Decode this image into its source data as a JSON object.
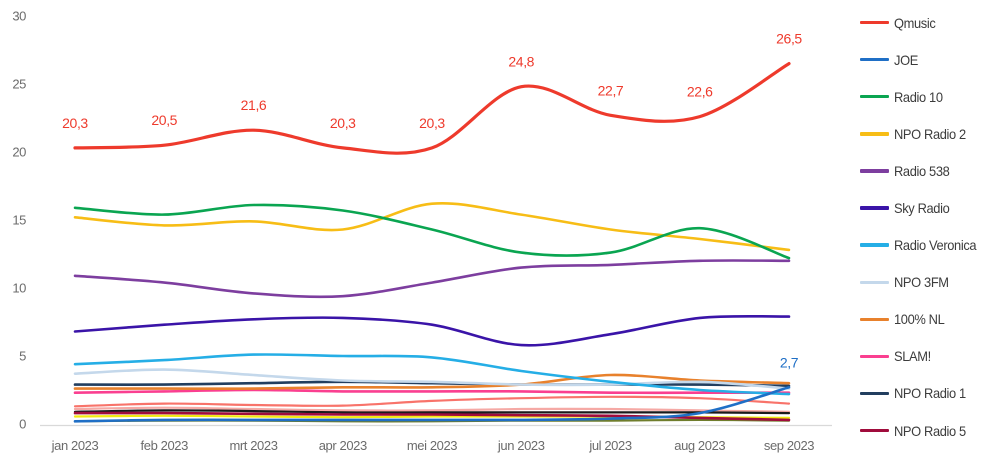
{
  "chart_data": {
    "type": "line",
    "title": "",
    "categories": [
      "jan 2023",
      "feb 2023",
      "mrt 2023",
      "apr 2023",
      "mei 2023",
      "jun 2023",
      "jul 2023",
      "aug 2023",
      "sep 2023"
    ],
    "y_ticks": [
      0,
      5,
      10,
      15,
      20,
      25,
      30
    ],
    "y_tick_labels": [
      "0",
      "5",
      "10",
      "15",
      "20",
      "25",
      "30"
    ],
    "ylim": [
      0,
      30
    ],
    "grid": false,
    "legend_position": "right",
    "series": [
      {
        "name": "Qmusic",
        "color": "#ee3a2c",
        "values": [
          20.3,
          20.5,
          21.6,
          20.3,
          20.3,
          24.8,
          22.7,
          22.6,
          26.5
        ],
        "point_labels": [
          "20,3",
          "20,5",
          "21,6",
          "20,3",
          "20,3",
          "24,8",
          "22,7",
          "22,6",
          "26,5"
        ]
      },
      {
        "name": "JOE",
        "color": "#1f6fc6",
        "values": [
          0.2,
          0.3,
          0.3,
          0.3,
          0.3,
          0.3,
          0.4,
          0.8,
          2.7
        ],
        "point_labels": [
          "",
          "",
          "",
          "",
          "",
          "",
          "",
          "",
          "2,7"
        ]
      },
      {
        "name": "Radio 10",
        "color": "#0aa551",
        "values": [
          15.9,
          15.4,
          16.1,
          15.7,
          14.3,
          12.6,
          12.6,
          14.4,
          12.2
        ],
        "point_labels": [
          "",
          "",
          "",
          "",
          "",
          "",
          "",
          "",
          ""
        ]
      },
      {
        "name": "NPO Radio 2",
        "color": "#f7bd16",
        "values": [
          15.2,
          14.6,
          14.9,
          14.3,
          16.2,
          15.4,
          14.3,
          13.6,
          12.8
        ],
        "point_labels": [
          "",
          "",
          "",
          "",
          "",
          "",
          "",
          "",
          ""
        ]
      },
      {
        "name": "Radio 538",
        "color": "#7d3e9f",
        "values": [
          10.9,
          10.4,
          9.6,
          9.4,
          10.4,
          11.5,
          11.7,
          12.0,
          12.0
        ],
        "point_labels": [
          "",
          "",
          "",
          "",
          "",
          "",
          "",
          "",
          ""
        ]
      },
      {
        "name": "Sky Radio",
        "color": "#3a14a8",
        "values": [
          6.8,
          7.3,
          7.7,
          7.8,
          7.3,
          5.8,
          6.6,
          7.8,
          7.9
        ],
        "point_labels": [
          "",
          "",
          "",
          "",
          "",
          "",
          "",
          "",
          ""
        ]
      },
      {
        "name": "Radio Veronica",
        "color": "#25aee6",
        "values": [
          4.4,
          4.7,
          5.1,
          5.0,
          4.9,
          3.9,
          3.1,
          2.5,
          2.2
        ],
        "point_labels": [
          "",
          "",
          "",
          "",
          "",
          "",
          "",
          "",
          ""
        ]
      },
      {
        "name": "NPO 3FM",
        "color": "#c4d8eb",
        "values": [
          3.7,
          4.0,
          3.6,
          3.2,
          3.1,
          2.9,
          2.9,
          3.1,
          2.6
        ],
        "point_labels": [
          "",
          "",
          "",
          "",
          "",
          "",
          "",
          "",
          ""
        ]
      },
      {
        "name": "100% NL",
        "color": "#e8812c",
        "values": [
          2.6,
          2.6,
          2.6,
          2.7,
          2.7,
          2.9,
          3.6,
          3.2,
          3.0
        ],
        "point_labels": [
          "",
          "",
          "",
          "",
          "",
          "",
          "",
          "",
          ""
        ]
      },
      {
        "name": "SLAM!",
        "color": "#fa3f90",
        "values": [
          2.3,
          2.4,
          2.5,
          2.4,
          2.4,
          2.4,
          2.3,
          2.3,
          2.3
        ],
        "point_labels": [
          "",
          "",
          "",
          "",
          "",
          "",
          "",
          "",
          ""
        ]
      },
      {
        "name": "NPO Radio 1",
        "color": "#223e5f",
        "values": [
          2.9,
          2.9,
          3.0,
          3.1,
          3.0,
          2.9,
          2.9,
          2.9,
          2.8
        ],
        "point_labels": [
          "",
          "",
          "",
          "",
          "",
          "",
          "",
          "",
          ""
        ]
      },
      {
        "name": "NPO Radio 5",
        "color": "#a00c3c",
        "values": [
          0.8,
          0.8,
          0.75,
          0.7,
          0.7,
          0.65,
          0.6,
          0.45,
          0.3
        ],
        "point_labels": [
          "",
          "",
          "",
          "",
          "",
          "",
          "",
          "",
          ""
        ]
      }
    ],
    "unlabeled_series": [
      {
        "color": "#f8736a",
        "values": [
          1.3,
          1.5,
          1.4,
          1.35,
          1.7,
          1.9,
          2.0,
          1.9,
          1.5
        ]
      },
      {
        "color": "#f5a9a5",
        "values": [
          1.1,
          1.2,
          1.1,
          1.0,
          1.0,
          1.1,
          1.1,
          1.0,
          0.9
        ]
      },
      {
        "color": "#1a1a1a",
        "values": [
          0.9,
          1.0,
          0.95,
          0.85,
          0.85,
          0.85,
          0.85,
          0.85,
          0.8
        ]
      },
      {
        "color": "#f2ea10",
        "values": [
          0.55,
          0.6,
          0.55,
          0.5,
          0.55,
          0.55,
          0.55,
          0.5,
          0.45
        ]
      },
      {
        "color": "#6f7d2c",
        "values": [
          0.2,
          0.25,
          0.25,
          0.2,
          0.2,
          0.25,
          0.25,
          0.3,
          0.25
        ]
      }
    ]
  },
  "colors": {
    "background": "#ffffff",
    "axis_text": "#6b6b6b",
    "legend_text": "#3c3c3c",
    "axis_line": "#d9d9d9",
    "qmusic_label": "#ee3a2c",
    "joe_label": "#1f6fc6"
  }
}
